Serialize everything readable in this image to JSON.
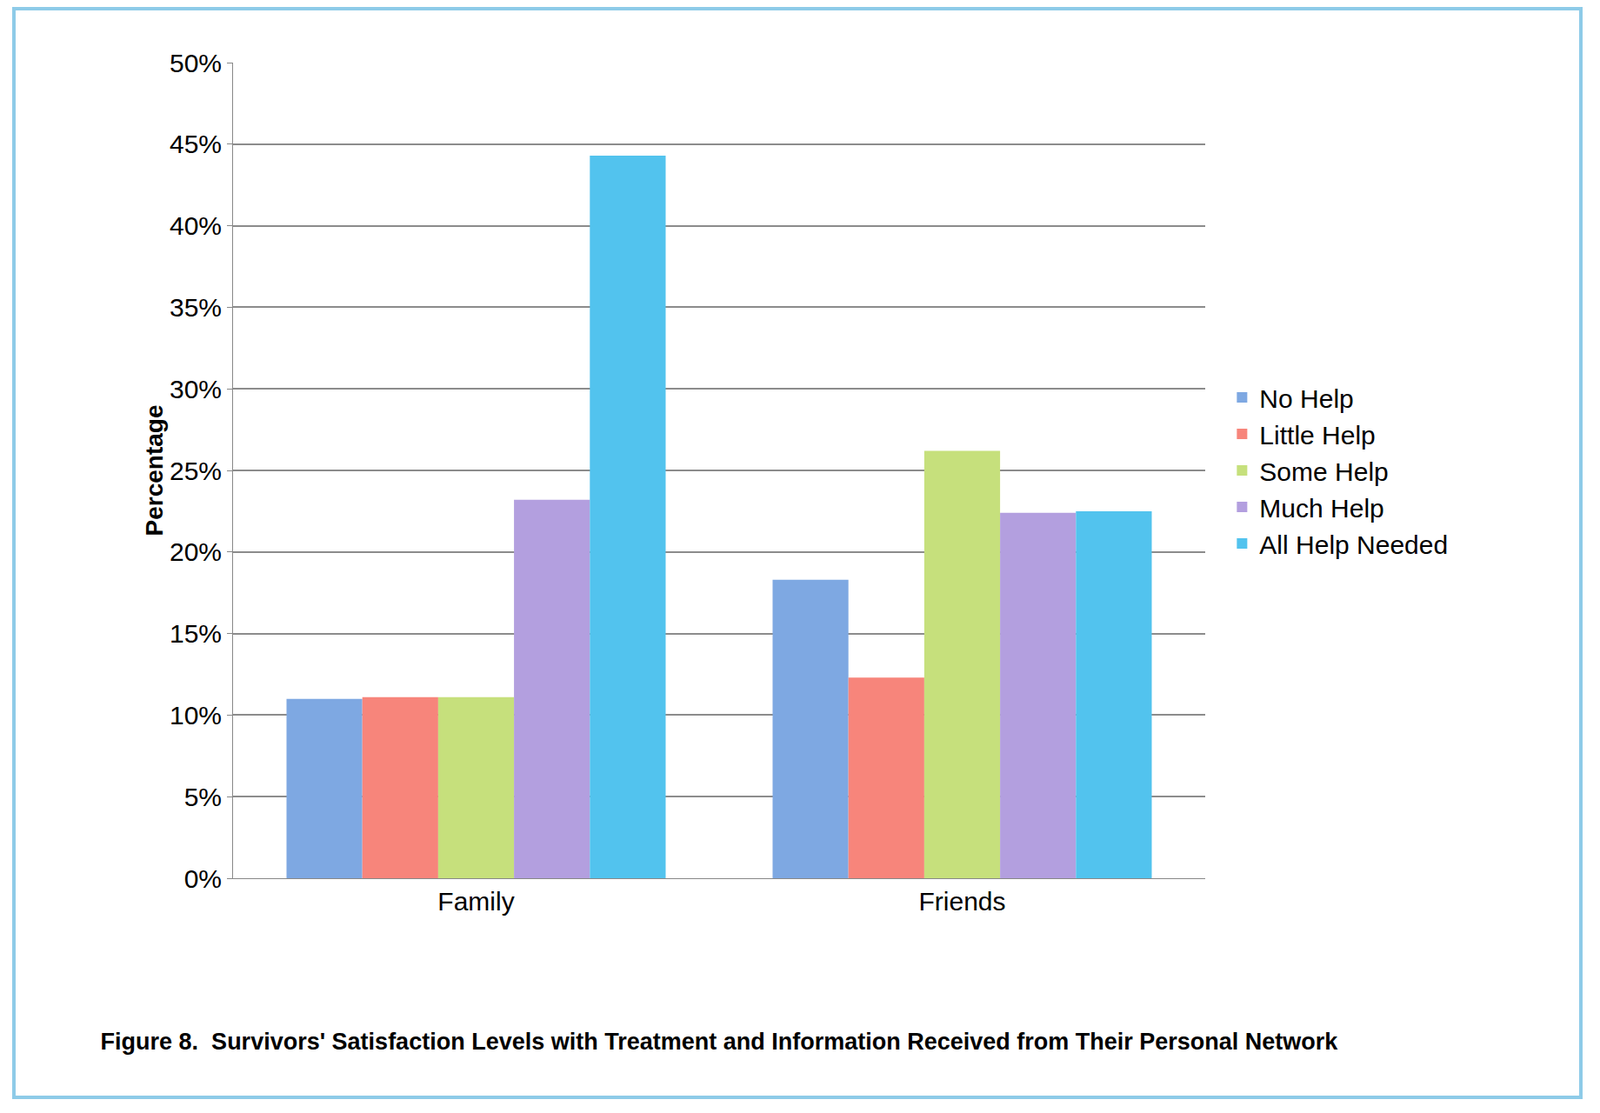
{
  "chart_data": {
    "type": "bar",
    "title": "Figure 8.  Survivors' Satisfaction Levels with Treatment and Information Received from Their Personal Network",
    "y_label": "Percentage",
    "categories": [
      "Family",
      "Friends"
    ],
    "series": [
      {
        "name": "No Help",
        "color": "#7ea8e2",
        "values": [
          11.0,
          18.3
        ]
      },
      {
        "name": "Little Help",
        "color": "#f7857b",
        "values": [
          11.1,
          12.3
        ]
      },
      {
        "name": "Some Help",
        "color": "#c6e07c",
        "values": [
          11.1,
          26.2
        ]
      },
      {
        "name": "Much Help",
        "color": "#b39fdf",
        "values": [
          23.2,
          22.4
        ]
      },
      {
        "name": "All Help Needed",
        "color": "#52c3ee",
        "values": [
          44.3,
          22.5
        ]
      }
    ],
    "ylim": [
      0,
      50
    ],
    "yticks": [
      {
        "value": 0,
        "label": "0%"
      },
      {
        "value": 5,
        "label": "5%"
      },
      {
        "value": 10,
        "label": "10%"
      },
      {
        "value": 15,
        "label": "15%"
      },
      {
        "value": 20,
        "label": "20%"
      },
      {
        "value": 25,
        "label": "25%"
      },
      {
        "value": 30,
        "label": "30%"
      },
      {
        "value": 35,
        "label": "35%"
      },
      {
        "value": 40,
        "label": "40%"
      },
      {
        "value": 45,
        "label": "45%"
      },
      {
        "value": 50,
        "label": "50%"
      }
    ],
    "grid": true,
    "legend": "right"
  }
}
